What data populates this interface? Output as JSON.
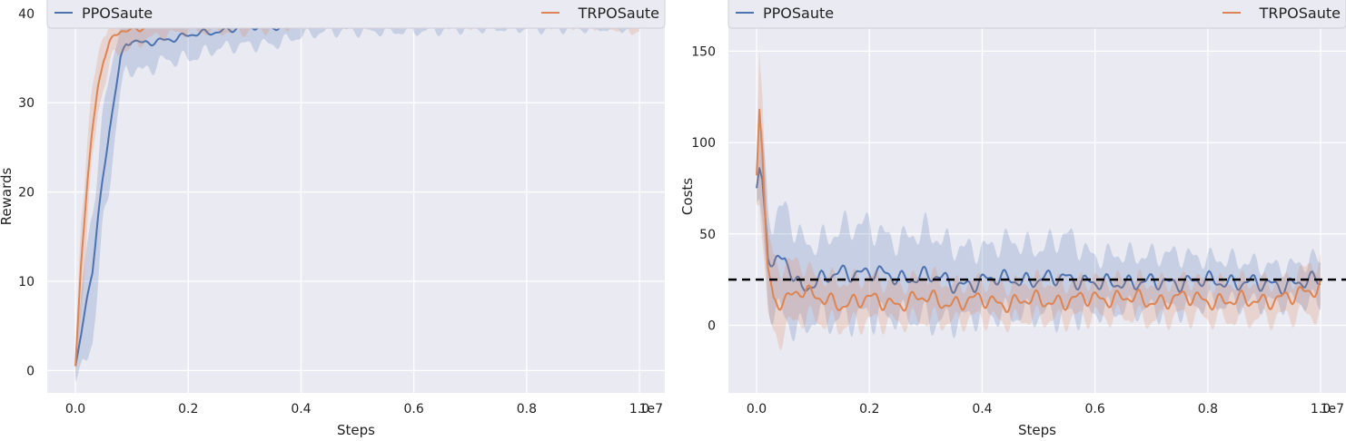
{
  "chart_data": [
    {
      "type": "line",
      "xlabel": "Steps",
      "ylabel": "Rewards",
      "x_offset_label": "1e7",
      "xlim": [
        -0.05,
        1.045
      ],
      "ylim": [
        -2.5,
        41.5
      ],
      "xticks": [
        0.0,
        0.2,
        0.4,
        0.6,
        0.8,
        1.0
      ],
      "xtick_labels": [
        "0.0",
        "0.2",
        "0.4",
        "0.6",
        "0.8",
        "1.0"
      ],
      "yticks": [
        0,
        10,
        20,
        30,
        40
      ],
      "ytick_labels": [
        "0",
        "10",
        "20",
        "30",
        "40"
      ],
      "grid": true,
      "legend": {
        "placement": "top",
        "entries": [
          "PPOSaute",
          "TRPOSaute"
        ]
      },
      "series": [
        {
          "name": "PPOSaute",
          "color": "#4c72b0",
          "x": [
            0.0,
            0.01,
            0.02,
            0.03,
            0.04,
            0.05,
            0.06,
            0.07,
            0.08,
            0.09,
            0.1,
            0.12,
            0.15,
            0.2,
            0.25,
            0.3,
            0.35,
            0.4,
            0.45,
            0.5,
            0.6,
            0.7,
            0.8,
            0.9,
            1.0
          ],
          "y": [
            0.5,
            4,
            8,
            11,
            17,
            22,
            27,
            31,
            35,
            36.5,
            37,
            36.5,
            37,
            37.5,
            38,
            38.5,
            38.5,
            39,
            39.5,
            39.5,
            39.5,
            39.5,
            39.5,
            39.5,
            39.5
          ],
          "band_width": [
            1.5,
            4,
            6,
            7,
            7,
            6,
            6,
            5,
            4,
            3,
            3,
            3,
            2.5,
            2.5,
            2,
            2,
            2,
            1.5,
            1.5,
            1.5,
            1.5,
            1.2,
            1.2,
            1.2,
            1.2
          ]
        },
        {
          "name": "TRPOSaute",
          "color": "#dd8452",
          "x": [
            0.0,
            0.01,
            0.02,
            0.03,
            0.04,
            0.05,
            0.06,
            0.07,
            0.08,
            0.09,
            0.1,
            0.12,
            0.15,
            0.2,
            0.25,
            0.3,
            0.35,
            0.4,
            0.45,
            0.5,
            0.6,
            0.7,
            0.8,
            0.9,
            1.0
          ],
          "y": [
            0.5,
            12,
            20,
            27,
            32,
            35,
            36.5,
            37.5,
            38,
            38,
            38,
            38.5,
            39,
            39.5,
            39.5,
            39.5,
            39.5,
            40,
            40,
            40,
            40,
            40,
            40,
            40,
            39.5
          ],
          "band_width": [
            1.5,
            5,
            5,
            4,
            3,
            3,
            2.5,
            2,
            2,
            2,
            2,
            1.5,
            1.5,
            1.5,
            1.5,
            1.5,
            1.2,
            1.2,
            1.2,
            1.2,
            1.2,
            1.2,
            1.2,
            1.2,
            1.5
          ]
        }
      ]
    },
    {
      "type": "line",
      "xlabel": "Steps",
      "ylabel": "Costs",
      "x_offset_label": "1e7",
      "xlim": [
        -0.05,
        1.045
      ],
      "ylim": [
        -37,
        178
      ],
      "xticks": [
        0.0,
        0.2,
        0.4,
        0.6,
        0.8,
        1.0
      ],
      "xtick_labels": [
        "0.0",
        "0.2",
        "0.4",
        "0.6",
        "0.8",
        "1.0"
      ],
      "yticks": [
        0,
        50,
        100,
        150
      ],
      "ytick_labels": [
        "0",
        "50",
        "100",
        "150"
      ],
      "grid": true,
      "legend": {
        "placement": "top",
        "entries": [
          "PPOSaute",
          "TRPOSaute"
        ]
      },
      "threshold": {
        "y": 25,
        "style": "dashed",
        "color": "#000000"
      },
      "series": [
        {
          "name": "PPOSaute",
          "color": "#4c72b0",
          "x": [
            0.0,
            0.005,
            0.01,
            0.015,
            0.02,
            0.03,
            0.05,
            0.08,
            0.1,
            0.15,
            0.2,
            0.25,
            0.3,
            0.35,
            0.4,
            0.45,
            0.5,
            0.55,
            0.6,
            0.65,
            0.7,
            0.75,
            0.8,
            0.85,
            0.9,
            0.95,
            1.0
          ],
          "y": [
            75,
            86,
            80,
            60,
            40,
            33,
            35,
            20,
            24,
            28,
            30,
            25,
            28,
            22,
            24,
            26,
            24,
            27,
            22,
            24,
            23,
            24,
            24,
            24,
            22,
            23,
            24
          ],
          "band_width": [
            10,
            20,
            25,
            25,
            25,
            25,
            30,
            25,
            20,
            25,
            25,
            20,
            25,
            20,
            18,
            20,
            18,
            22,
            15,
            15,
            15,
            15,
            12,
            12,
            10,
            10,
            12
          ]
        },
        {
          "name": "TRPOSaute",
          "color": "#dd8452",
          "x": [
            0.0,
            0.005,
            0.01,
            0.015,
            0.02,
            0.03,
            0.05,
            0.08,
            0.1,
            0.15,
            0.2,
            0.25,
            0.3,
            0.35,
            0.4,
            0.45,
            0.5,
            0.55,
            0.6,
            0.65,
            0.7,
            0.75,
            0.8,
            0.85,
            0.9,
            0.95,
            1.0
          ],
          "y": [
            82,
            118,
            95,
            60,
            30,
            12,
            15,
            20,
            15,
            12,
            14,
            12,
            15,
            12,
            14,
            12,
            14,
            13,
            15,
            15,
            13,
            15,
            14,
            13,
            14,
            15,
            22
          ],
          "band_width": [
            15,
            40,
            40,
            30,
            25,
            20,
            18,
            15,
            12,
            12,
            12,
            10,
            12,
            10,
            10,
            10,
            10,
            10,
            10,
            10,
            10,
            10,
            10,
            10,
            10,
            10,
            15
          ]
        }
      ]
    }
  ]
}
